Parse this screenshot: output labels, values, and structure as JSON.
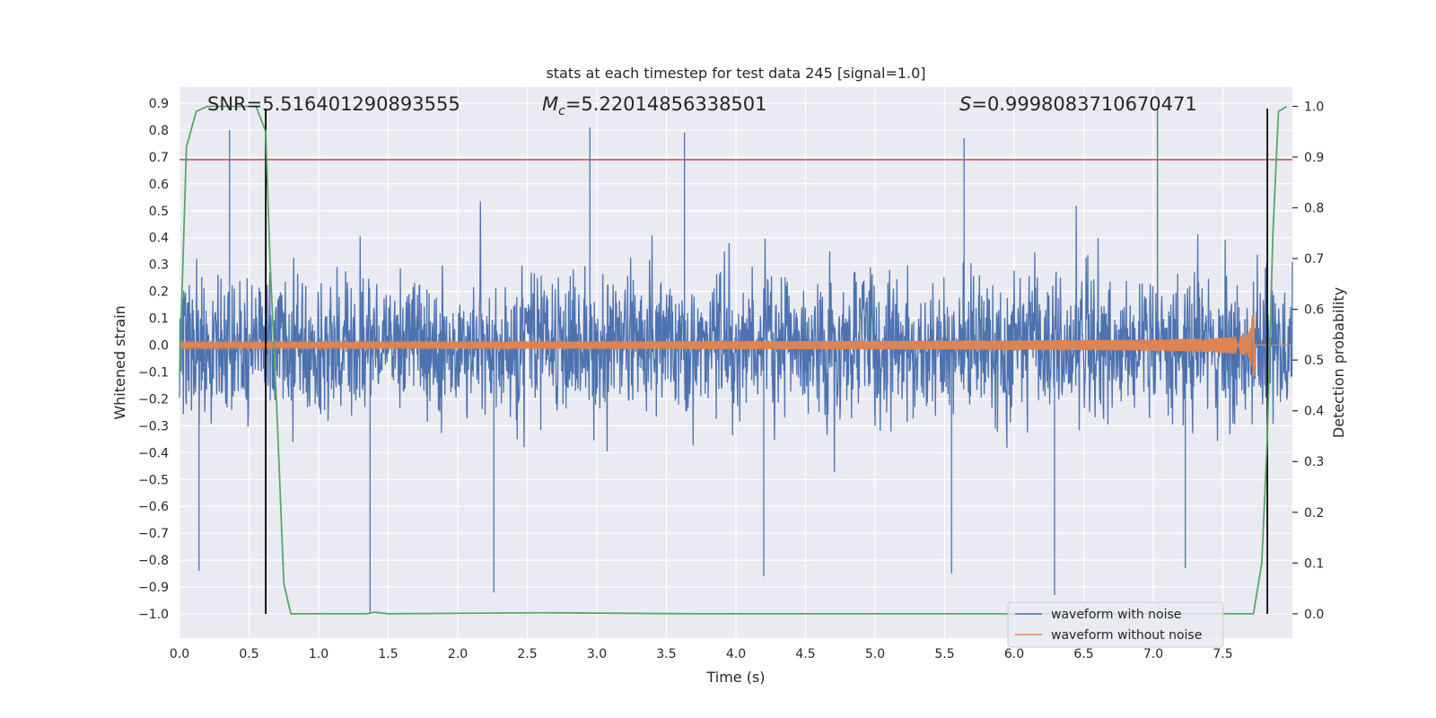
{
  "chart_data": {
    "type": "line",
    "title": "stats at each timestep for test data 245 [signal=1.0]",
    "xlabel": "Time (s)",
    "ylabel": "Whitened strain",
    "y2label": "Detection probability",
    "xlim": [
      0.0,
      8.0
    ],
    "ylim": [
      -1.09,
      0.96
    ],
    "y2lim": [
      -0.048,
      1.038
    ],
    "xticks": [
      "0.0",
      "0.5",
      "1.0",
      "1.5",
      "2.0",
      "2.5",
      "3.0",
      "3.5",
      "4.0",
      "4.5",
      "5.0",
      "5.5",
      "6.0",
      "6.5",
      "7.0",
      "7.5"
    ],
    "xtick_values": [
      0.0,
      0.5,
      1.0,
      1.5,
      2.0,
      2.5,
      3.0,
      3.5,
      4.0,
      4.5,
      5.0,
      5.5,
      6.0,
      6.5,
      7.0,
      7.5
    ],
    "yticks": [
      "0.9",
      "0.8",
      "0.7",
      "0.6",
      "0.5",
      "0.4",
      "0.3",
      "0.2",
      "0.1",
      "0.0",
      "−0.1",
      "−0.2",
      "−0.3",
      "−0.4",
      "−0.5",
      "−0.6",
      "−0.7",
      "−0.8",
      "−0.9",
      "−1.0"
    ],
    "ytick_values": [
      0.9,
      0.8,
      0.7,
      0.6,
      0.5,
      0.4,
      0.3,
      0.2,
      0.1,
      0.0,
      -0.1,
      -0.2,
      -0.3,
      -0.4,
      -0.5,
      -0.6,
      -0.7,
      -0.8,
      -0.9,
      -1.0
    ],
    "y2ticks": [
      "1.0",
      "0.9",
      "0.8",
      "0.7",
      "0.6",
      "0.5",
      "0.4",
      "0.3",
      "0.2",
      "0.1",
      "0.0"
    ],
    "y2tick_values": [
      1.0,
      0.9,
      0.8,
      0.7,
      0.6,
      0.5,
      0.4,
      0.3,
      0.2,
      0.1,
      0.0
    ],
    "annotations": {
      "snr": "SNR=5.516401290893555",
      "mc_symbol": "M",
      "mc_sub": "c",
      "mc_value": "=5.22014856338501",
      "s_symbol": "S",
      "s_value": "=0.9998083710670471"
    },
    "threshold": {
      "y": 0.69,
      "color": "#c44e52"
    },
    "vlines": [
      0.62,
      7.82
    ],
    "vline_range": [
      -1.0,
      0.88
    ],
    "series": [
      {
        "name": "waveform with noise",
        "color": "#4c72b0",
        "typical_amplitude": 0.42,
        "spikes": [
          {
            "x": 0.36,
            "y": 0.8
          },
          {
            "x": 1.37,
            "y": -1.0
          },
          {
            "x": 2.26,
            "y": -0.92
          },
          {
            "x": 2.95,
            "y": 0.81
          },
          {
            "x": 3.63,
            "y": 0.79
          },
          {
            "x": 5.64,
            "y": 0.77
          },
          {
            "x": 6.29,
            "y": -0.93
          },
          {
            "x": 7.03,
            "y": 0.88
          },
          {
            "x": 0.14,
            "y": -0.84
          },
          {
            "x": 4.2,
            "y": -0.86
          },
          {
            "x": 5.55,
            "y": -0.85
          },
          {
            "x": 7.23,
            "y": -0.83
          }
        ]
      },
      {
        "name": "waveform without noise",
        "color": "#dd8452",
        "chirp_end": 7.73,
        "start_amplitude": 0.012,
        "peak_amplitude": 0.12
      },
      {
        "name": "detection probability",
        "color": "#55a868",
        "points": [
          [
            0.0,
            0.47
          ],
          [
            0.05,
            0.92
          ],
          [
            0.12,
            0.99
          ],
          [
            0.2,
            1.0
          ],
          [
            0.55,
            1.0
          ],
          [
            0.62,
            0.95
          ],
          [
            0.65,
            0.7
          ],
          [
            0.7,
            0.4
          ],
          [
            0.75,
            0.06
          ],
          [
            0.8,
            0.0
          ],
          [
            1.35,
            0.0
          ],
          [
            1.4,
            0.003
          ],
          [
            1.5,
            0.0
          ],
          [
            2.6,
            0.002
          ],
          [
            3.7,
            0.0
          ],
          [
            7.72,
            0.0
          ],
          [
            7.78,
            0.1
          ],
          [
            7.82,
            0.35
          ],
          [
            7.86,
            0.75
          ],
          [
            7.9,
            0.99
          ],
          [
            7.96,
            1.0
          ]
        ]
      }
    ],
    "legend": [
      "waveform with noise",
      "waveform without noise"
    ],
    "legend_position": "lower-right"
  }
}
